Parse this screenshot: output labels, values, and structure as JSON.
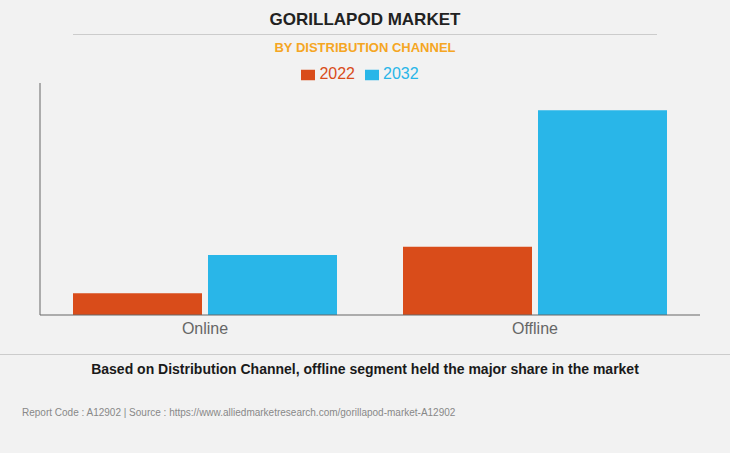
{
  "chart_data": {
    "type": "bar",
    "title": "GORILLAPOD MARKET",
    "subtitle": "BY DISTRIBUTION CHANNEL",
    "categories": [
      "Online",
      "Offline"
    ],
    "series": [
      {
        "name": "2022",
        "color": "#d94c1a",
        "values": [
          0.8,
          2.5
        ]
      },
      {
        "name": "2032",
        "color": "#29b6e8",
        "values": [
          2.2,
          7.5
        ]
      }
    ],
    "ylim": [
      0,
      8.5
    ],
    "yticks": [],
    "grid": false,
    "legend": "top",
    "tick_labels": "x",
    "annotations": [
      "Based on Distribution Channel, offline segment held the major share in the market",
      "Report Code : A12902  |  Source : https://www.alliedmarketresearch.com/gorillapod-market-A12902"
    ]
  }
}
